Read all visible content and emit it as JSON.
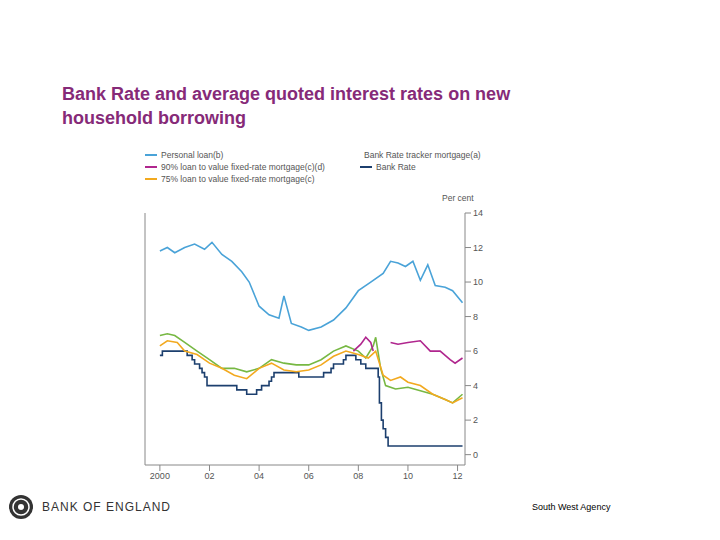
{
  "chart_data": {
    "type": "line",
    "title": "Bank Rate and average quoted interest rates on new household borrowing",
    "y_label": "Per cent",
    "xlim": [
      1999.4,
      2012.3
    ],
    "xticks": [
      2000,
      {
        "value": 2002,
        "label": "02"
      },
      {
        "value": 2004,
        "label": "04"
      },
      {
        "value": 2006,
        "label": "06"
      },
      {
        "value": 2008,
        "label": "08"
      },
      {
        "value": 2010,
        "label": "10"
      },
      {
        "value": 2012,
        "label": "12"
      }
    ],
    "ylim": [
      -0.6,
      14
    ],
    "yticks": [
      0,
      2,
      4,
      6,
      8,
      10,
      12,
      14
    ],
    "grid": false,
    "legend": "top",
    "series": [
      {
        "name": "Personal loan(b)",
        "color": "#4aa3d8",
        "line_style": "solid",
        "x": [
          2000.0,
          2000.3,
          2000.6,
          2001.0,
          2001.4,
          2001.8,
          2002.1,
          2002.5,
          2002.9,
          2003.3,
          2003.6,
          2004.0,
          2004.4,
          2004.8,
          2005.0,
          2005.3,
          2005.7,
          2006.0,
          2006.5,
          2007.0,
          2007.5,
          2008.0,
          2008.5,
          2009.0,
          2009.3,
          2009.6,
          2009.9,
          2010.2,
          2010.5,
          2010.8,
          2011.1,
          2011.5,
          2011.8,
          2012.2
        ],
        "values": [
          11.8,
          12.0,
          11.7,
          12.0,
          12.2,
          11.9,
          12.3,
          11.6,
          11.2,
          10.6,
          10.0,
          8.6,
          8.1,
          7.9,
          9.2,
          7.6,
          7.4,
          7.2,
          7.4,
          7.8,
          8.5,
          9.5,
          10.0,
          10.5,
          11.2,
          11.1,
          10.9,
          11.2,
          10.1,
          11.0,
          9.8,
          9.7,
          9.5,
          8.8
        ]
      },
      {
        "name": "Bank Rate tracker mortgage(a)",
        "color": "#77b843",
        "line_style": "solid",
        "x": [
          2000.0,
          2000.3,
          2000.6,
          2001.0,
          2001.5,
          2002.0,
          2002.5,
          2003.0,
          2003.5,
          2004.0,
          2004.5,
          2005.0,
          2005.5,
          2006.0,
          2006.5,
          2007.0,
          2007.5,
          2008.0,
          2008.3,
          2008.6,
          2008.7,
          2008.9,
          2009.1,
          2009.5,
          2010.0,
          2010.5,
          2011.0,
          2011.5,
          2011.8,
          2012.2
        ],
        "values": [
          6.9,
          7.0,
          6.9,
          6.5,
          6.0,
          5.5,
          5.0,
          5.0,
          4.8,
          5.0,
          5.5,
          5.3,
          5.2,
          5.2,
          5.5,
          6.0,
          6.3,
          6.0,
          5.6,
          6.3,
          6.8,
          5.0,
          4.0,
          3.8,
          3.9,
          3.7,
          3.5,
          3.2,
          3.0,
          3.5
        ]
      },
      {
        "name": "90% loan to value fixed-rate mortgage(c)(d)",
        "color": "#b0268e",
        "line_style": "solid",
        "x": [
          2007.8,
          2008.1,
          2008.3,
          2008.5,
          2008.6,
          2008.9,
          2009.3,
          2009.6,
          2010.0,
          2010.5,
          2010.9,
          2011.3,
          2011.7,
          2011.9,
          2012.2
        ],
        "values": [
          6.0,
          6.4,
          6.8,
          6.5,
          6.0,
          null,
          6.5,
          6.4,
          6.5,
          6.6,
          6.0,
          6.0,
          5.5,
          5.3,
          5.6
        ]
      },
      {
        "name": "Bank Rate",
        "color": "#1c3f6e",
        "line_style": "step",
        "x": [
          2000.0,
          2000.1,
          2001.1,
          2001.3,
          2001.4,
          2001.6,
          2001.7,
          2001.8,
          2001.9,
          2003.1,
          2003.5,
          2003.9,
          2004.1,
          2004.4,
          2004.5,
          2004.6,
          2005.6,
          2006.6,
          2006.9,
          2007.0,
          2007.4,
          2007.5,
          2007.9,
          2008.1,
          2008.3,
          2008.8,
          2008.85,
          2008.93,
          2009.0,
          2009.1,
          2009.2,
          2012.2
        ],
        "values": [
          5.75,
          6.0,
          5.75,
          5.5,
          5.25,
          5.0,
          4.75,
          4.5,
          4.0,
          3.75,
          3.5,
          3.75,
          4.0,
          4.25,
          4.5,
          4.75,
          4.5,
          4.75,
          5.0,
          5.25,
          5.5,
          5.75,
          5.5,
          5.25,
          5.0,
          4.5,
          3.0,
          2.0,
          1.5,
          1.0,
          0.5,
          0.5
        ]
      },
      {
        "name": "75% loan to value fixed-rate mortgage(c)",
        "color": "#f2a91f",
        "line_style": "solid",
        "x": [
          2000.0,
          2000.3,
          2000.7,
          2001.0,
          2001.5,
          2002.0,
          2002.5,
          2003.0,
          2003.5,
          2004.0,
          2004.5,
          2005.0,
          2005.5,
          2006.0,
          2006.5,
          2007.0,
          2007.5,
          2008.0,
          2008.4,
          2008.7,
          2009.0,
          2009.3,
          2009.7,
          2010.0,
          2010.5,
          2011.0,
          2011.5,
          2011.8,
          2012.2
        ],
        "values": [
          6.3,
          6.6,
          6.5,
          6.0,
          5.8,
          5.3,
          5.0,
          4.6,
          4.4,
          5.0,
          5.3,
          4.9,
          4.8,
          4.9,
          5.2,
          5.7,
          6.0,
          5.8,
          5.6,
          6.0,
          4.6,
          4.3,
          4.5,
          4.2,
          4.0,
          3.5,
          3.2,
          3.0,
          3.3
        ]
      }
    ],
    "footer": {
      "logo": "BANK OF ENGLAND",
      "source": "South West Agency"
    }
  }
}
